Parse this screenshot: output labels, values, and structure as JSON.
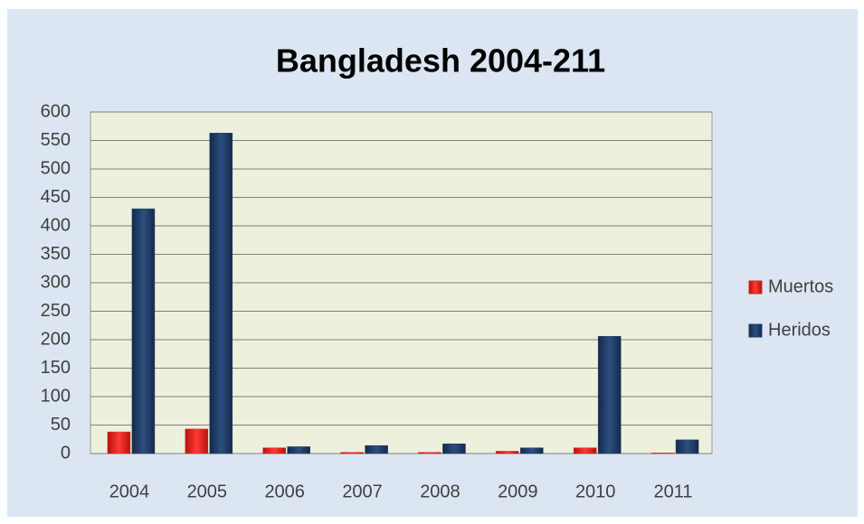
{
  "chart_data": {
    "type": "bar",
    "title": "Bangladesh 2004-211",
    "categories": [
      "2004",
      "2005",
      "2006",
      "2007",
      "2008",
      "2009",
      "2010",
      "2011"
    ],
    "series": [
      {
        "name": "Muertos",
        "color": "#e0201c",
        "values": [
          38,
          43,
          10,
          2,
          2,
          4,
          10,
          1
        ]
      },
      {
        "name": "Heridos",
        "color": "#1f3d66",
        "values": [
          430,
          563,
          12,
          14,
          17,
          10,
          206,
          24
        ]
      }
    ],
    "ylim": [
      0,
      600
    ],
    "yticks": [
      0,
      50,
      100,
      150,
      200,
      250,
      300,
      350,
      400,
      450,
      500,
      550,
      600
    ],
    "grid": true,
    "legend": "right"
  }
}
